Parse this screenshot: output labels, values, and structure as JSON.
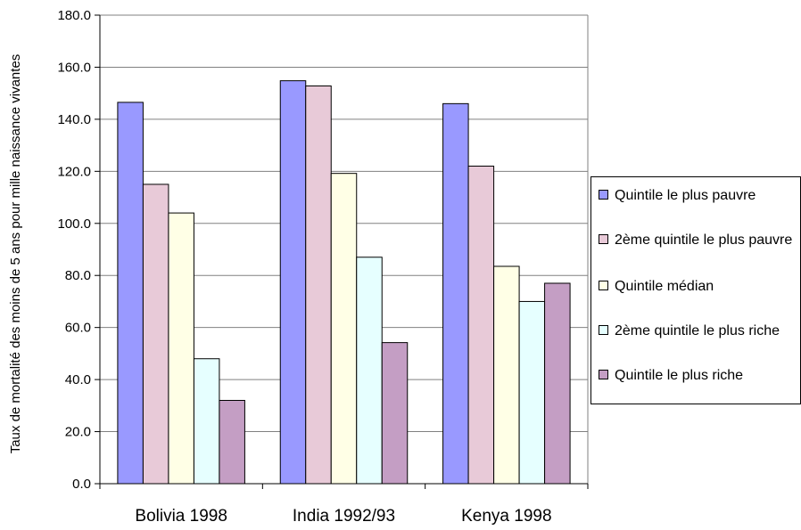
{
  "chart_data": {
    "type": "bar",
    "title": "",
    "xlabel": "",
    "ylabel": "Taux de mortalité des moins de 5 ans pour mille naissance vivantes",
    "ylim": [
      0,
      180
    ],
    "yticks": [
      "0.0",
      "20.0",
      "40.0",
      "60.0",
      "80.0",
      "100.0",
      "120.0",
      "140.0",
      "160.0",
      "180.0"
    ],
    "categories": [
      "Bolivia 1998",
      "India 1992/93",
      "Kenya 1998"
    ],
    "grid": true,
    "legend_position": "right",
    "series": [
      {
        "name": "Quintile le plus pauvre",
        "color": "#9999ff",
        "values": [
          146.5,
          154.8,
          146.0
        ]
      },
      {
        "name": "2ème quintile le plus pauvre",
        "color": "#e8cad8",
        "values": [
          115.0,
          152.8,
          122.0
        ]
      },
      {
        "name": "Quintile médian",
        "color": "#ffffe6",
        "values": [
          104.0,
          119.2,
          83.5
        ]
      },
      {
        "name": "2ème quintile le plus riche",
        "color": "#e6ffff",
        "values": [
          48.0,
          87.0,
          70.0
        ]
      },
      {
        "name": "Quintile le plus riche",
        "color": "#c49ec4",
        "values": [
          32.0,
          54.2,
          77.0
        ]
      }
    ]
  }
}
